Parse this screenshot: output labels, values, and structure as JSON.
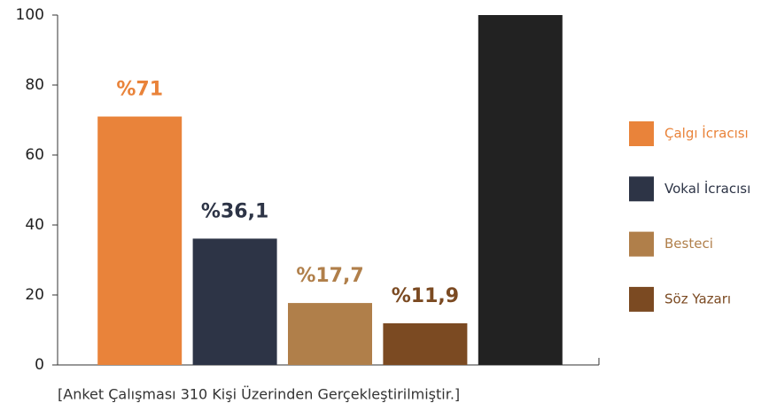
{
  "chart_data": {
    "type": "bar",
    "categories": [
      "Çalgı İcracısı",
      "Vokal İcracısı",
      "Besteci",
      "Söz Yazarı",
      null
    ],
    "values": [
      71,
      36.1,
      17.7,
      11.9,
      100
    ],
    "value_labels": [
      "%71",
      "%36,1",
      "%17,7",
      "%11,9",
      null
    ],
    "colors": [
      "#e9833a",
      "#2d3446",
      "#b07f4a",
      "#7b4a22",
      "#222222"
    ],
    "ylim": [
      0,
      100
    ],
    "yticks": [
      0,
      20,
      40,
      60,
      80,
      100
    ],
    "note": "[Anket Çalışması 310 Kişi Üzerinden Gerçekleştirilmiştir.]"
  }
}
